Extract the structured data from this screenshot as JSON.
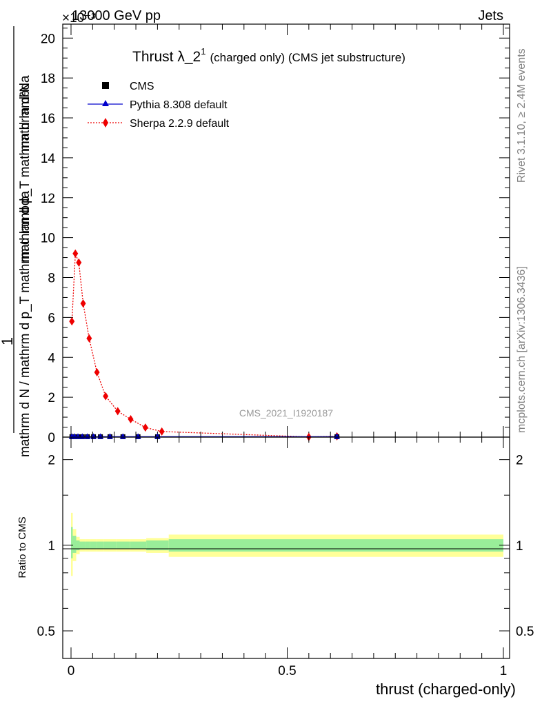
{
  "header": {
    "left": "13000 GeV pp",
    "right": "Jets",
    "exponent": "×10⁻³"
  },
  "side": {
    "rivet": "Rivet 3.1.10, ≥ 2.4M events",
    "mcplots": "mcplots.cern.ch [arXiv:1306.3436]"
  },
  "main_plot": {
    "title_main": "Thrust λ_2",
    "title_sup": "1",
    "title_sub": "(charged only) (CMS jet substructure)",
    "watermark": "CMS_2021_I1920187",
    "ylabel_numerator": "1",
    "ylabel_denominator": "mathrm d N / mathrm d p_T mathrm d lambda",
    "ylabel_frac_num": "mathrm d²N",
    "ylabel_frac_den": "mathrm d p_T mathrm d lambda"
  },
  "ratio_plot": {
    "ylabel": "Ratio to CMS"
  },
  "xaxis": {
    "label": "thrust (charged-only)"
  },
  "legend": [
    {
      "name": "CMS",
      "color": "#000000",
      "marker": "square"
    },
    {
      "name": "Pythia 8.308 default",
      "color": "#0000cc",
      "marker": "triangle"
    },
    {
      "name": "Sherpa 2.2.9 default",
      "color": "#ee0000",
      "marker": "diamond"
    }
  ],
  "chart_data": {
    "type": "line",
    "scale_note": "y values ×10^-3",
    "xlim": [
      0,
      1
    ],
    "ylim": [
      0,
      20.7
    ],
    "yticks": [
      0,
      2,
      4,
      6,
      8,
      10,
      12,
      14,
      16,
      18,
      20
    ],
    "xticks": [
      0,
      0.5,
      1
    ],
    "xticklabels": [
      "0",
      "0.5",
      "1"
    ],
    "series": [
      {
        "name": "CMS",
        "x": [
          0.002,
          0.008,
          0.016,
          0.026,
          0.038,
          0.052,
          0.068,
          0.09,
          0.12,
          0.155,
          0.2,
          0.615
        ],
        "y": [
          0.02,
          0.02,
          0.02,
          0.02,
          0.02,
          0.02,
          0.02,
          0.02,
          0.02,
          0.02,
          0.02,
          0.02
        ]
      },
      {
        "name": "Pythia 8.308 default",
        "x": [
          0.002,
          0.008,
          0.016,
          0.026,
          0.038,
          0.052,
          0.068,
          0.09,
          0.12,
          0.155,
          0.2,
          0.615
        ],
        "y": [
          0.02,
          0.02,
          0.02,
          0.02,
          0.02,
          0.02,
          0.02,
          0.02,
          0.02,
          0.02,
          0.02,
          0.02
        ]
      },
      {
        "name": "Sherpa 2.2.9 default",
        "x": [
          0.002,
          0.01,
          0.018,
          0.028,
          0.042,
          0.06,
          0.08,
          0.108,
          0.138,
          0.172,
          0.21,
          0.55,
          0.615
        ],
        "y": [
          5.8,
          9.2,
          8.75,
          6.7,
          4.95,
          3.25,
          2.05,
          1.3,
          0.9,
          0.48,
          0.28,
          0.01,
          0.04
        ]
      }
    ],
    "ratio": {
      "ylim": [
        0.4,
        2.4
      ],
      "log": true,
      "yticks": [
        0.5,
        1,
        2
      ],
      "yticklabels": [
        "0.5",
        "1",
        "2"
      ],
      "bands": [
        {
          "x0": 0.0,
          "x1": 0.004,
          "inner": [
            0.9,
            1.16
          ],
          "outer": [
            0.78,
            1.3
          ]
        },
        {
          "x0": 0.004,
          "x1": 0.012,
          "inner": [
            0.94,
            1.08
          ],
          "outer": [
            0.88,
            1.14
          ]
        },
        {
          "x0": 0.012,
          "x1": 0.02,
          "inner": [
            0.96,
            1.04
          ],
          "outer": [
            0.93,
            1.07
          ]
        },
        {
          "x0": 0.02,
          "x1": 0.032,
          "inner": [
            0.97,
            1.03
          ],
          "outer": [
            0.95,
            1.05
          ]
        },
        {
          "x0": 0.032,
          "x1": 0.044,
          "inner": [
            0.97,
            1.03
          ],
          "outer": [
            0.95,
            1.05
          ]
        },
        {
          "x0": 0.044,
          "x1": 0.06,
          "inner": [
            0.97,
            1.03
          ],
          "outer": [
            0.95,
            1.05
          ]
        },
        {
          "x0": 0.06,
          "x1": 0.076,
          "inner": [
            0.97,
            1.03
          ],
          "outer": [
            0.95,
            1.05
          ]
        },
        {
          "x0": 0.076,
          "x1": 0.104,
          "inner": [
            0.97,
            1.03
          ],
          "outer": [
            0.95,
            1.05
          ]
        },
        {
          "x0": 0.104,
          "x1": 0.136,
          "inner": [
            0.97,
            1.03
          ],
          "outer": [
            0.95,
            1.05
          ]
        },
        {
          "x0": 0.136,
          "x1": 0.174,
          "inner": [
            0.97,
            1.03
          ],
          "outer": [
            0.95,
            1.05
          ]
        },
        {
          "x0": 0.174,
          "x1": 0.226,
          "inner": [
            0.96,
            1.04
          ],
          "outer": [
            0.94,
            1.06
          ]
        },
        {
          "x0": 0.226,
          "x1": 1.0,
          "inner": [
            0.95,
            1.05
          ],
          "outer": [
            0.91,
            1.09
          ]
        }
      ],
      "series": [
        {
          "name": "Pythia 8.308 default",
          "x": [],
          "y": []
        },
        {
          "name": "Sherpa 2.2.9 default",
          "x": [],
          "y": []
        }
      ]
    }
  },
  "colors": {
    "band_inner": "#99ee99",
    "band_outer": "#ffff99",
    "sherpa": "#ee0000",
    "pythia": "#0000cc",
    "cms": "#000000",
    "watermark": "#999999"
  }
}
